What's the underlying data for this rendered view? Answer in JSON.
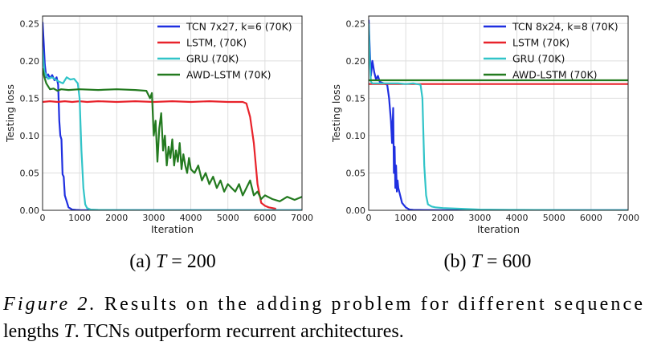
{
  "figure": {
    "caption_label": "Figure 2.",
    "caption_line1": " Results on the adding problem for different sequence",
    "caption_line2_a": "lengths ",
    "caption_line2_T": "T",
    "caption_line2_b": ". TCNs outperform recurrent architectures."
  },
  "colors": {
    "tcn": "#1f2fe0",
    "lstm": "#e8232b",
    "gru": "#31c4c8",
    "awd": "#237a1f",
    "grid": "#dedede",
    "axis": "#222222"
  },
  "chart_data": [
    {
      "type": "line",
      "subcaption_prefix": "(a) ",
      "subcaption_T": "T",
      "subcaption_suffix": " = 200",
      "xlabel": "Iteration",
      "ylabel": "Testing loss",
      "xlim": [
        0,
        7000
      ],
      "ylim": [
        0,
        0.26
      ],
      "xticks": [
        0,
        1000,
        2000,
        3000,
        4000,
        5000,
        6000,
        7000
      ],
      "yticks": [
        0.0,
        0.05,
        0.1,
        0.15,
        0.2,
        0.25
      ],
      "yticklabels": [
        "0.00",
        "0.05",
        "0.10",
        "0.15",
        "0.20",
        "0.25"
      ],
      "legend_position": "top-right",
      "grid": true,
      "series": [
        {
          "key": "tcn",
          "name": "TCN 7x27, k=6 (70K)",
          "x": [
            0,
            30,
            60,
            100,
            150,
            200,
            260,
            320,
            380,
            420,
            450,
            480,
            510,
            540,
            570,
            600,
            650,
            700,
            800,
            900,
            1000,
            1500,
            2000,
            3000,
            4000,
            5000,
            6000,
            7000
          ],
          "y": [
            0.252,
            0.225,
            0.195,
            0.178,
            0.182,
            0.177,
            0.181,
            0.174,
            0.178,
            0.168,
            0.12,
            0.1,
            0.095,
            0.048,
            0.045,
            0.02,
            0.012,
            0.004,
            0.001,
            0.0005,
            0.0003,
            0.0002,
            0.0002,
            0.0002,
            0.0002,
            0.0002,
            0.0002,
            0.0002
          ]
        },
        {
          "key": "lstm",
          "name": "LSTM, (70K)",
          "x": [
            0,
            200,
            400,
            600,
            800,
            1000,
            1200,
            1500,
            2000,
            2500,
            3000,
            3500,
            4000,
            4500,
            5000,
            5400,
            5500,
            5600,
            5700,
            5800,
            5900,
            6000,
            6100,
            6200,
            6300
          ],
          "y": [
            0.145,
            0.146,
            0.145,
            0.146,
            0.145,
            0.146,
            0.145,
            0.146,
            0.145,
            0.146,
            0.145,
            0.146,
            0.145,
            0.146,
            0.145,
            0.145,
            0.143,
            0.125,
            0.09,
            0.035,
            0.01,
            0.006,
            0.004,
            0.003,
            0.002
          ]
        },
        {
          "key": "gru",
          "name": "GRU (70K)",
          "x": [
            0,
            50,
            150,
            250,
            350,
            450,
            550,
            650,
            750,
            850,
            950,
            1000,
            1050,
            1100,
            1150,
            1200,
            1300,
            1500,
            2000,
            3000,
            4000,
            5000,
            6000,
            7000
          ],
          "y": [
            0.215,
            0.185,
            0.176,
            0.178,
            0.175,
            0.172,
            0.17,
            0.178,
            0.175,
            0.176,
            0.17,
            0.15,
            0.08,
            0.03,
            0.008,
            0.003,
            0.001,
            0.0005,
            0.0003,
            0.0002,
            0.0002,
            0.0002,
            0.0002,
            0.0002
          ]
        },
        {
          "key": "awd",
          "name": "AWD-LSTM (70K)",
          "x": [
            0,
            50,
            100,
            200,
            300,
            400,
            500,
            700,
            1000,
            1500,
            2000,
            2500,
            2800,
            2900,
            2950,
            3000,
            3050,
            3100,
            3150,
            3200,
            3250,
            3300,
            3350,
            3400,
            3450,
            3500,
            3550,
            3600,
            3650,
            3700,
            3750,
            3800,
            3850,
            3900,
            3950,
            4000,
            4100,
            4200,
            4300,
            4400,
            4500,
            4600,
            4700,
            4800,
            4900,
            5000,
            5100,
            5200,
            5300,
            5400,
            5500,
            5600,
            5700,
            5800,
            5900,
            6000,
            6200,
            6400,
            6600,
            6800,
            7000
          ],
          "y": [
            0.19,
            0.178,
            0.17,
            0.162,
            0.163,
            0.16,
            0.162,
            0.161,
            0.162,
            0.161,
            0.162,
            0.161,
            0.16,
            0.15,
            0.157,
            0.1,
            0.12,
            0.065,
            0.11,
            0.13,
            0.08,
            0.1,
            0.06,
            0.085,
            0.07,
            0.095,
            0.06,
            0.08,
            0.065,
            0.09,
            0.055,
            0.075,
            0.06,
            0.05,
            0.07,
            0.055,
            0.05,
            0.06,
            0.04,
            0.05,
            0.035,
            0.045,
            0.03,
            0.04,
            0.025,
            0.035,
            0.03,
            0.025,
            0.035,
            0.02,
            0.03,
            0.04,
            0.02,
            0.025,
            0.015,
            0.02,
            0.015,
            0.012,
            0.018,
            0.014,
            0.018
          ]
        }
      ]
    },
    {
      "type": "line",
      "subcaption_prefix": "(b) ",
      "subcaption_T": "T",
      "subcaption_suffix": " = 600",
      "xlabel": "Iteration",
      "ylabel": "Testing loss",
      "xlim": [
        0,
        7000
      ],
      "ylim": [
        0,
        0.26
      ],
      "xticks": [
        0,
        1000,
        2000,
        3000,
        4000,
        5000,
        6000,
        7000
      ],
      "yticks": [
        0.0,
        0.05,
        0.1,
        0.15,
        0.2,
        0.25
      ],
      "yticklabels": [
        "0.00",
        "0.05",
        "0.10",
        "0.15",
        "0.20",
        "0.25"
      ],
      "legend_position": "top-right",
      "grid": true,
      "series": [
        {
          "key": "tcn",
          "name": "TCN 8x24, k=8 (70K)",
          "x": [
            0,
            30,
            60,
            100,
            150,
            200,
            250,
            300,
            400,
            500,
            550,
            600,
            630,
            660,
            680,
            700,
            720,
            740,
            760,
            780,
            800,
            850,
            900,
            1000,
            1100,
            1200,
            1500,
            2000,
            3000,
            4000,
            5000,
            6000,
            7000
          ],
          "y": [
            0.255,
            0.215,
            0.18,
            0.2,
            0.185,
            0.175,
            0.18,
            0.172,
            0.17,
            0.168,
            0.15,
            0.12,
            0.09,
            0.137,
            0.05,
            0.085,
            0.03,
            0.06,
            0.025,
            0.04,
            0.03,
            0.02,
            0.01,
            0.004,
            0.001,
            0.0005,
            0.0003,
            0.0002,
            0.0002,
            0.0002,
            0.0002,
            0.0002,
            0.0002
          ]
        },
        {
          "key": "lstm",
          "name": "LSTM (70K)",
          "x": [
            0,
            1000,
            2000,
            3000,
            4000,
            5000,
            6000,
            7000
          ],
          "y": [
            0.169,
            0.169,
            0.169,
            0.169,
            0.169,
            0.169,
            0.169,
            0.169
          ]
        },
        {
          "key": "gru",
          "name": "GRU (70K)",
          "x": [
            0,
            30,
            60,
            100,
            200,
            400,
            600,
            800,
            1000,
            1200,
            1400,
            1450,
            1500,
            1550,
            1600,
            1700,
            1800,
            2000,
            2500,
            3000,
            4000,
            5000,
            6000,
            7000
          ],
          "y": [
            0.25,
            0.2,
            0.172,
            0.17,
            0.17,
            0.17,
            0.17,
            0.17,
            0.169,
            0.17,
            0.168,
            0.15,
            0.06,
            0.02,
            0.008,
            0.005,
            0.004,
            0.003,
            0.002,
            0.001,
            0.0005,
            0.0003,
            0.0002,
            0.0002
          ]
        },
        {
          "key": "awd",
          "name": "AWD-LSTM (70K)",
          "x": [
            0,
            500,
            1000,
            2000,
            3000,
            4000,
            5000,
            6000,
            7000
          ],
          "y": [
            0.174,
            0.174,
            0.174,
            0.174,
            0.174,
            0.174,
            0.174,
            0.174,
            0.174
          ]
        }
      ]
    }
  ]
}
